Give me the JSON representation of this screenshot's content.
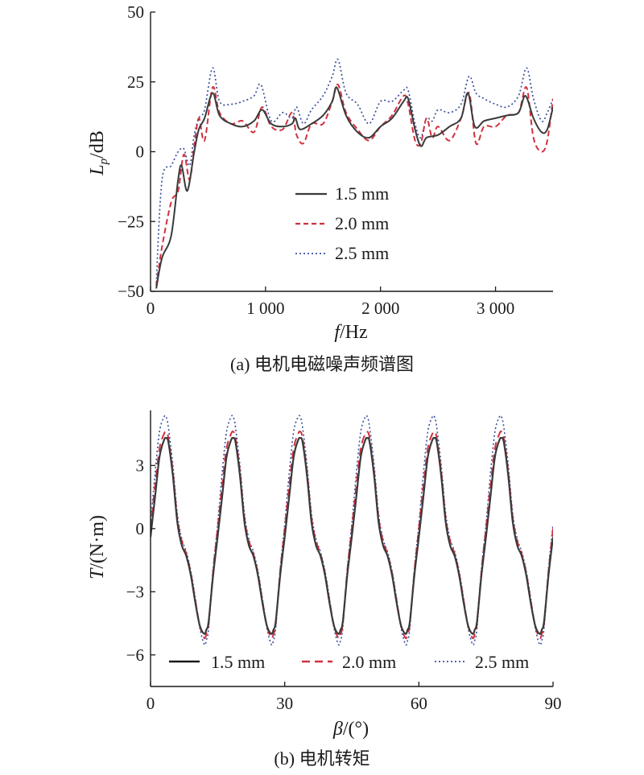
{
  "colors": {
    "s15": "#3a3a3a",
    "s20": "#d0313f",
    "s25": "#3b4f9c",
    "axis": "#1a1a1a"
  },
  "chart_data": [
    {
      "type": "line",
      "caption": "(a) 电机电磁噪声频谱图",
      "xlabel": "f/Hz",
      "ylabel": "Lp/dB",
      "xlim": [
        0,
        3500
      ],
      "ylim": [
        -50,
        50
      ],
      "x_ticks": [
        0,
        1000,
        2000,
        3000
      ],
      "x_tick_labels": [
        "0",
        "1 000",
        "2 000",
        "3 000"
      ],
      "y_ticks": [
        -50,
        -25,
        0,
        25,
        50
      ],
      "y_tick_labels": [
        "−50",
        "−25",
        "0",
        "25",
        "50"
      ],
      "legend_position": "center",
      "series": [
        {
          "name": "1.5 mm",
          "style": "solid",
          "x": [
            50,
            100,
            180,
            240,
            270,
            320,
            380,
            420,
            470,
            540,
            600,
            700,
            800,
            900,
            970,
            1050,
            1150,
            1230,
            1260,
            1300,
            1400,
            1500,
            1580,
            1620,
            1700,
            1800,
            1900,
            2000,
            2100,
            2200,
            2240,
            2300,
            2350,
            2400,
            2500,
            2600,
            2700,
            2760,
            2820,
            2900,
            3000,
            3100,
            3200,
            3260,
            3330,
            3400,
            3450,
            3500
          ],
          "y": [
            -49,
            -38,
            -30,
            -10,
            -5,
            -14,
            0,
            8,
            12,
            21,
            13,
            10,
            9,
            11,
            15,
            10,
            9,
            10,
            12,
            8,
            10,
            13,
            18,
            23,
            13,
            7,
            5,
            9,
            12,
            18,
            19,
            8,
            2,
            5,
            6,
            9,
            12,
            21,
            9,
            11,
            12,
            13,
            14,
            20,
            12,
            7,
            8,
            16
          ]
        },
        {
          "name": "2.0 mm",
          "style": "dashed",
          "x": [
            50,
            100,
            180,
            240,
            290,
            340,
            380,
            420,
            470,
            540,
            600,
            700,
            800,
            900,
            970,
            1050,
            1150,
            1230,
            1270,
            1330,
            1400,
            1500,
            1580,
            1630,
            1700,
            1800,
            1900,
            2000,
            2100,
            2200,
            2240,
            2300,
            2350,
            2400,
            2450,
            2500,
            2600,
            2700,
            2770,
            2830,
            2900,
            3000,
            3100,
            3200,
            3270,
            3330,
            3400,
            3450,
            3500
          ],
          "y": [
            -48,
            -34,
            -18,
            -14,
            -1,
            -10,
            2,
            12,
            4,
            23,
            14,
            10,
            11,
            7,
            16,
            9,
            8,
            14,
            6,
            3,
            10,
            10,
            18,
            24,
            14,
            8,
            4,
            9,
            13,
            20,
            17,
            4,
            3,
            12,
            5,
            9,
            4,
            12,
            21,
            3,
            9,
            9,
            13,
            14,
            23,
            5,
            0,
            4,
            19
          ]
        },
        {
          "name": "2.5 mm",
          "style": "dotted",
          "x": [
            50,
            100,
            180,
            240,
            290,
            340,
            380,
            420,
            470,
            540,
            600,
            700,
            800,
            900,
            960,
            1050,
            1150,
            1230,
            1270,
            1330,
            1400,
            1500,
            1580,
            1630,
            1700,
            1800,
            1900,
            2000,
            2100,
            2200,
            2240,
            2300,
            2350,
            2400,
            2450,
            2500,
            2600,
            2700,
            2770,
            2830,
            2900,
            3000,
            3100,
            3200,
            3270,
            3330,
            3400,
            3450,
            3500
          ],
          "y": [
            -47,
            -10,
            -5,
            0,
            1,
            -5,
            6,
            12,
            15,
            30,
            18,
            17,
            18,
            20,
            24,
            11,
            14,
            12,
            16,
            10,
            15,
            20,
            27,
            33,
            21,
            17,
            10,
            18,
            18,
            22,
            22,
            10,
            5,
            12,
            11,
            15,
            14,
            17,
            27,
            21,
            19,
            17,
            16,
            20,
            30,
            19,
            11,
            14,
            19
          ]
        }
      ]
    },
    {
      "type": "line",
      "caption": "(b) 电机转矩",
      "xlabel": "β/(°)",
      "ylabel": "T/(N·m)",
      "xlim": [
        0,
        90
      ],
      "ylim": [
        -7.5,
        5.5
      ],
      "x_ticks": [
        0,
        30,
        60,
        90
      ],
      "x_tick_labels": [
        "0",
        "30",
        "60",
        "90"
      ],
      "y_ticks": [
        3,
        0,
        -3,
        -6
      ],
      "y_tick_labels": [
        "3",
        "0",
        "−3",
        "−6"
      ],
      "legend_position": "bottom",
      "period_deg": 15,
      "series": [
        {
          "name": "1.5 mm",
          "style": "solid",
          "x": [
            0,
            1,
            2,
            3,
            3.5,
            4,
            5,
            6,
            7,
            8,
            9,
            10,
            11,
            12,
            12.5,
            13,
            14,
            15
          ],
          "y": [
            -0.4,
            1.5,
            3.4,
            4.2,
            4.3,
            4.1,
            2.5,
            0.3,
            -0.8,
            -1.3,
            -2.2,
            -3.5,
            -4.6,
            -5.0,
            -4.8,
            -4.4,
            -2.2,
            -0.4
          ]
        },
        {
          "name": "2.0 mm",
          "style": "dashed",
          "x": [
            0,
            1,
            2,
            3,
            3.5,
            4,
            5,
            6,
            7,
            8,
            9,
            10,
            11,
            12,
            12.5,
            13,
            14,
            15
          ],
          "y": [
            0.0,
            2.0,
            3.8,
            4.5,
            4.6,
            4.3,
            2.7,
            0.5,
            -0.6,
            -1.2,
            -2.1,
            -3.4,
            -4.6,
            -5.2,
            -5.0,
            -4.5,
            -2.0,
            0.0
          ]
        },
        {
          "name": "2.5 mm",
          "style": "dotted",
          "x": [
            0,
            1,
            2,
            3,
            3.5,
            4,
            5,
            6,
            7,
            8,
            9,
            10,
            11,
            12,
            12.5,
            13,
            14,
            15
          ],
          "y": [
            0.2,
            2.6,
            4.6,
            5.3,
            5.3,
            4.8,
            3.0,
            0.7,
            -0.5,
            -1.1,
            -2.0,
            -3.3,
            -4.7,
            -5.5,
            -5.3,
            -4.7,
            -1.9,
            0.2
          ]
        }
      ]
    }
  ]
}
